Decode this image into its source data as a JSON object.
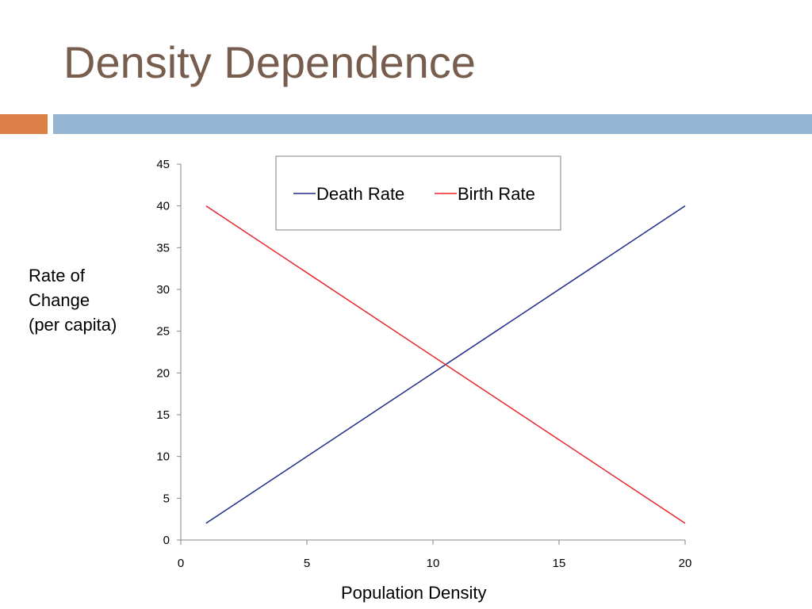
{
  "slide": {
    "title": "Density Dependence",
    "accent_colors": {
      "title": "#775d4d",
      "orange_bar": "#dd8047",
      "blue_bar": "#94b6d2"
    }
  },
  "chart_data": {
    "type": "line",
    "title": "",
    "xlabel": "Population Density",
    "ylabel_lines": [
      "Rate of",
      "Change",
      "(per capita)"
    ],
    "xlim": [
      0,
      20
    ],
    "ylim": [
      0,
      45
    ],
    "x_ticks": [
      0,
      5,
      10,
      15,
      20
    ],
    "y_ticks": [
      0,
      5,
      10,
      15,
      20,
      25,
      30,
      35,
      40,
      45
    ],
    "grid": false,
    "legend_position": "top-center",
    "series": [
      {
        "name": "Death Rate",
        "color": "#1f2b8a",
        "x": [
          1,
          20
        ],
        "values": [
          2,
          40
        ]
      },
      {
        "name": "Birth Rate",
        "color": "#e8262c",
        "x": [
          1,
          20
        ],
        "values": [
          40,
          2
        ]
      }
    ]
  }
}
